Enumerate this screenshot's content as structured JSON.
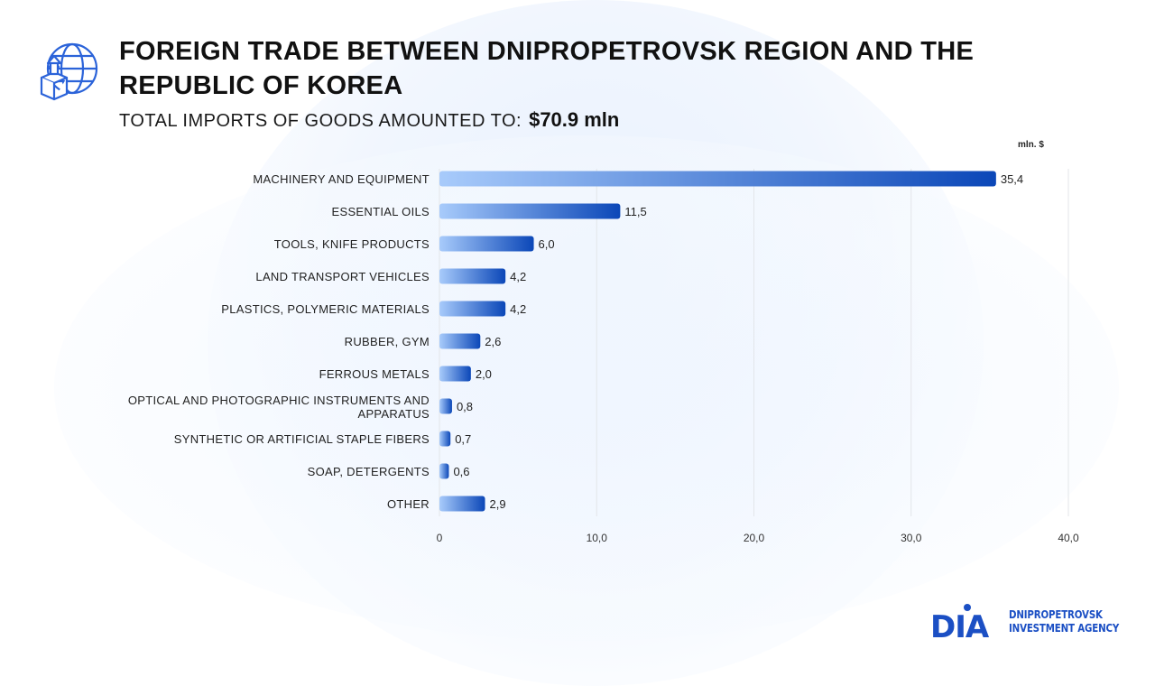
{
  "header": {
    "title": "FOREIGN TRADE BETWEEN DNIPROPETROVSK REGION AND THE REPUBLIC OF KOREA",
    "subtitle_label": "TOTAL IMPORTS OF GOODS AMOUNTED TO:",
    "subtitle_value": "$70.9  mln",
    "icon": "globe-upload-box-icon"
  },
  "colors": {
    "accent": "#0b47b8",
    "bar_start": "#a8cbfb",
    "bar_end": "#0b47b8",
    "grid": "#e3e6ea"
  },
  "chart_data": {
    "type": "bar",
    "orientation": "horizontal",
    "unit_label": "mln. $",
    "categories": [
      "MACHINERY AND EQUIPMENT",
      "ESSENTIAL OILS",
      "TOOLS, KNIFE PRODUCTS",
      "LAND TRANSPORT VEHICLES",
      "PLASTICS, POLYMERIC MATERIALS",
      "RUBBER, GYM",
      "FERROUS METALS",
      "OPTICAL AND PHOTOGRAPHIC INSTRUMENTS AND APPARATUS",
      "SYNTHETIC OR ARTIFICIAL STAPLE FIBERS",
      "SOAP, DETERGENTS",
      "OTHER"
    ],
    "values": [
      35.4,
      11.5,
      6.0,
      4.2,
      4.2,
      2.6,
      2.0,
      0.8,
      0.7,
      0.6,
      2.9
    ],
    "value_labels": [
      "35,4",
      "11,5",
      "6,0",
      "4,2",
      "4,2",
      "2,6",
      "2,0",
      "0,8",
      "0,7",
      "0,6",
      "2,9"
    ],
    "xlim": [
      0,
      40
    ],
    "x_ticks": [
      0,
      10,
      20,
      30,
      40
    ],
    "x_tick_labels": [
      "0",
      "10,0",
      "20,0",
      "30,0",
      "40,0"
    ],
    "grid": true,
    "legend": false
  },
  "logo": {
    "mark": "DIA",
    "line1": "DNIPROPETROVSK",
    "line2": "INVESTMENT AGENCY"
  }
}
